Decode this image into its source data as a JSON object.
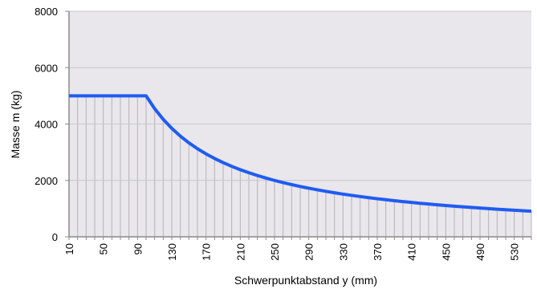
{
  "chart_data": {
    "type": "area",
    "title": "",
    "xlabel": "Schwerpunktabstand y (mm)",
    "ylabel": "Masse m (kg)",
    "xlim": [
      10,
      550
    ],
    "ylim": [
      0,
      8000
    ],
    "x_ticks": [
      "10",
      "50",
      "90",
      "130",
      "170",
      "210",
      "250",
      "290",
      "330",
      "370",
      "410",
      "450",
      "490",
      "530"
    ],
    "y_ticks": [
      "0",
      "2000",
      "4000",
      "6000",
      "8000"
    ],
    "grid": "horizontal",
    "legend": "none",
    "series": [
      {
        "color": "#1f5cf0",
        "x": [
          10,
          20,
          30,
          40,
          50,
          60,
          70,
          80,
          90,
          100,
          110,
          120,
          130,
          140,
          150,
          160,
          170,
          180,
          190,
          200,
          210,
          220,
          230,
          240,
          250,
          260,
          270,
          280,
          290,
          300,
          310,
          320,
          330,
          340,
          350,
          360,
          370,
          380,
          390,
          400,
          410,
          420,
          430,
          440,
          450,
          460,
          470,
          480,
          490,
          500,
          510,
          520,
          530,
          540,
          550
        ],
        "values": [
          5000,
          5000,
          5000,
          5000,
          5000,
          5000,
          5000,
          5000,
          5000,
          5000,
          4545,
          4167,
          3846,
          3571,
          3333,
          3125,
          2941,
          2778,
          2632,
          2500,
          2381,
          2273,
          2174,
          2083,
          2000,
          1923,
          1852,
          1786,
          1724,
          1667,
          1613,
          1563,
          1515,
          1471,
          1429,
          1389,
          1351,
          1316,
          1282,
          1250,
          1220,
          1190,
          1163,
          1136,
          1111,
          1087,
          1064,
          1042,
          1020,
          1000,
          980,
          962,
          943,
          926,
          909
        ]
      }
    ]
  },
  "colors": {
    "plot_background": "#e9e6ec",
    "drop_lines": "#b5b2b8",
    "gridlines": "#c8c8c8",
    "axis": "#8a8a8a"
  }
}
